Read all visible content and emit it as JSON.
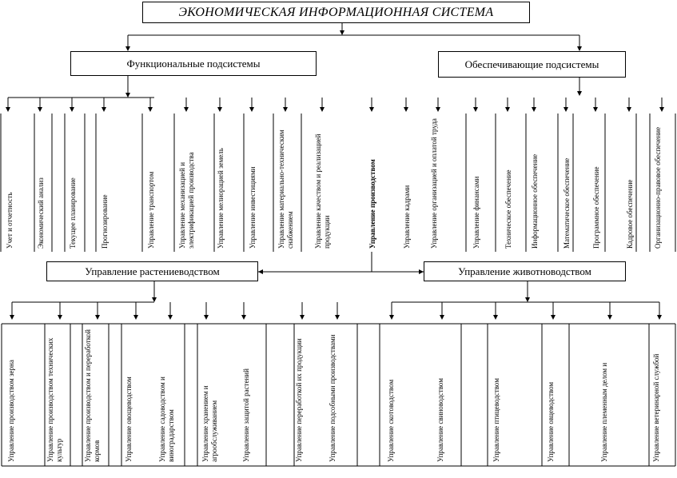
{
  "title": "ЭКОНОМИЧЕСКАЯ ИНФОРМАЦИОННАЯ СИСТЕМА",
  "functional": "Функциональные подсистемы",
  "supporting": "Обеспечивающие подсистемы",
  "crop": "Управление растениеводством",
  "livestock": "Управление животноводством",
  "top_items": [
    "Учет и отчетность",
    "Экономический анализ",
    "Текущее планирование",
    "Прогнозирование",
    "Управление транспортом",
    "Управление механизацией и электрификацией производства",
    "Управление мелиорацией земель",
    "Управление инвестициями",
    "Управление материально-техническим снабжением",
    "Управление качеством и реализацией продукции",
    "Управление производством",
    "Управление кадрами",
    "Управление организацией и оплатой труда",
    "Управление финансами",
    "Техническое обеспечение",
    "Информационное обеспечение",
    "Математическое обеспечение",
    "Программное обеспечение",
    "Кадровое обеспечение",
    "Организационно-правовое обеспечение"
  ],
  "bottom_items": [
    "Управление производством зерна",
    "Управление производством технических культур",
    "Управление производством и переработкой кормов",
    "Управление овощеводством",
    "Управление садоводством и виноградарством",
    "Управление хранением и агрообслуживанием",
    "Управление защитой растений",
    "Управление переработкой их продукции",
    "Управление подсобными производствами",
    "Управление скотоводством",
    "Управление свиноводством",
    "Управление птицеводством",
    "Управление овцеводством",
    "Управление племенным делом и",
    "Управление ветеринарной службой"
  ]
}
